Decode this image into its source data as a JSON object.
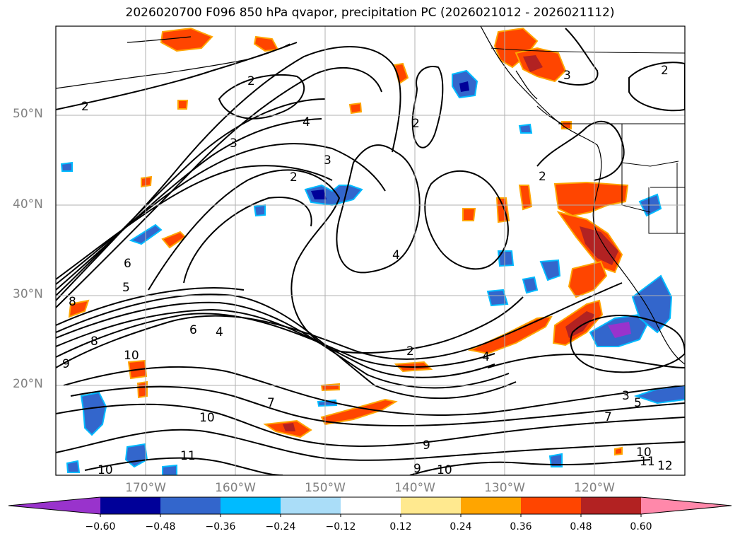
{
  "title": "2026020700 F096 850 hPa qvapor, precipitation PC (2026021012 - 2026021112)",
  "latitude_labels": [
    "50°N",
    "40°N",
    "30°N",
    "20°N"
  ],
  "longitude_labels": [
    "170°W",
    "160°W",
    "150°W",
    "140°W",
    "130°W",
    "120°W"
  ],
  "colorbar": {
    "tick_labels": [
      "−0.60",
      "−0.48",
      "−0.36",
      "−0.24",
      "−0.12",
      "0.12",
      "0.24",
      "0.36",
      "0.48",
      "0.60"
    ],
    "colors": [
      "#9933cc",
      "#000099",
      "#3366cc",
      "#00bbff",
      "#aaddf8",
      "#ffffff",
      "#ffe98f",
      "#ffa500",
      "#ff4500",
      "#b22222",
      "#ff88aa"
    ]
  },
  "contour_labels": [
    "2",
    "2",
    "2",
    "2",
    "2",
    "2",
    "2",
    "3",
    "3",
    "3",
    "3",
    "4",
    "4",
    "4",
    "4",
    "5",
    "5",
    "6",
    "6",
    "7",
    "7",
    "8",
    "8",
    "9",
    "9",
    "9",
    "10",
    "10",
    "10",
    "10",
    "10",
    "11",
    "11",
    "12"
  ],
  "map_colors": {
    "contour": "#000000",
    "grid": "#b0b0b0",
    "coast": "#000000"
  }
}
